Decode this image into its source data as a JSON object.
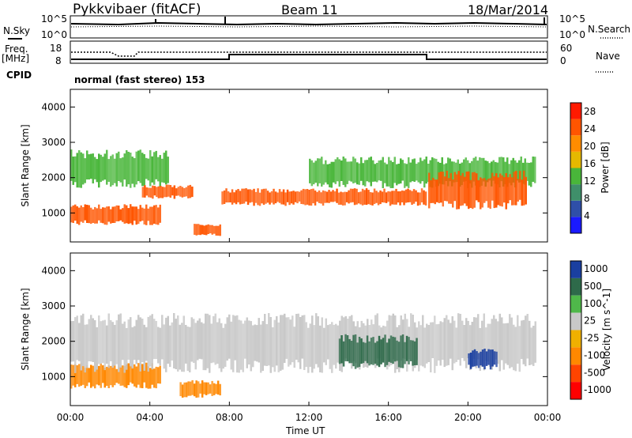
{
  "header": {
    "radar": "Pykkvibaer (fitACF)",
    "beam": "Beam 11",
    "date": "18/Mar/2014"
  },
  "top_panels": {
    "nsky_label": "N.Sky",
    "nsky_ticks": [
      "10^5",
      "10^0"
    ],
    "nsearch_label": "N.Search",
    "freq_label": "Freq.",
    "freq_unit": "[MHz]",
    "freq_ticks": [
      "18",
      "8"
    ],
    "nave_label": "Nave",
    "nave_ticks": [
      "60",
      "0"
    ],
    "cpid_label": "CPID",
    "cpid_value": "normal (fast stereo) 153"
  },
  "colors": {
    "power_scale": [
      "#1a1aff",
      "#2f4fa8",
      "#3f8f6a",
      "#49b63a",
      "#e5b800",
      "#ff8c00",
      "#ff5500",
      "#ff1a00"
    ],
    "velocity_scale": [
      "#1a3fa0",
      "#2e6a4a",
      "#4fb84a",
      "#c8c8c8",
      "#f0b000",
      "#ff8800",
      "#ff4400",
      "#ff0000"
    ]
  },
  "chart_data": [
    {
      "type": "heatmap",
      "title": "",
      "xlabel": "",
      "ylabel": "Slant Range [km]",
      "ylim": [
        180,
        4500
      ],
      "x_ticks": [
        "00:00",
        "04:00",
        "08:00",
        "12:00",
        "16:00",
        "20:00",
        "00:00"
      ],
      "y_ticks": [
        "1000",
        "2000",
        "3000",
        "4000"
      ],
      "colorbar": {
        "label": "Power [dB]",
        "ticks": [
          "4",
          "8",
          "12",
          "16",
          "20",
          "24",
          "28"
        ],
        "range": [
          0,
          30
        ]
      },
      "features": [
        {
          "t0": 0.0,
          "t1": 4.6,
          "r0": 650,
          "r1": 1250,
          "level": 26
        },
        {
          "t0": 0.0,
          "t1": 5.0,
          "r0": 1700,
          "r1": 2800,
          "level": 12
        },
        {
          "t0": 3.6,
          "t1": 6.2,
          "r0": 1400,
          "r1": 1800,
          "level": 24
        },
        {
          "t0": 6.2,
          "t1": 7.6,
          "r0": 350,
          "r1": 700,
          "level": 24
        },
        {
          "t0": 7.6,
          "t1": 18.0,
          "r0": 1200,
          "r1": 1700,
          "level": 26
        },
        {
          "t0": 12.0,
          "t1": 23.5,
          "r0": 1700,
          "r1": 2600,
          "level": 14
        },
        {
          "t0": 18.0,
          "t1": 23.0,
          "r0": 1100,
          "r1": 2200,
          "level": 24
        }
      ]
    },
    {
      "type": "heatmap",
      "title": "",
      "xlabel": "Time UT",
      "ylabel": "Slant Range [km]",
      "ylim": [
        180,
        4500
      ],
      "x_ticks": [
        "00:00",
        "04:00",
        "08:00",
        "12:00",
        "16:00",
        "20:00",
        "00:00"
      ],
      "y_ticks": [
        "1000",
        "2000",
        "3000",
        "4000"
      ],
      "colorbar": {
        "label": "Velocity [m s^-1]",
        "ticks": [
          "1000",
          "500",
          "100",
          "25",
          "-25",
          "-100",
          "-500",
          "-1000"
        ]
      },
      "features": [
        {
          "t0": 0.0,
          "t1": 4.6,
          "r0": 650,
          "r1": 1400,
          "value": -150
        },
        {
          "t0": 5.5,
          "t1": 7.6,
          "r0": 400,
          "r1": 900,
          "value": -150
        },
        {
          "t0": 0.0,
          "t1": 23.5,
          "r0": 1100,
          "r1": 2800,
          "value": 0
        },
        {
          "t0": 13.5,
          "t1": 17.5,
          "r0": 1200,
          "r1": 2200,
          "value": 150
        },
        {
          "t0": 20.0,
          "t1": 21.5,
          "r0": 1200,
          "r1": 1800,
          "value": 800
        }
      ]
    }
  ]
}
